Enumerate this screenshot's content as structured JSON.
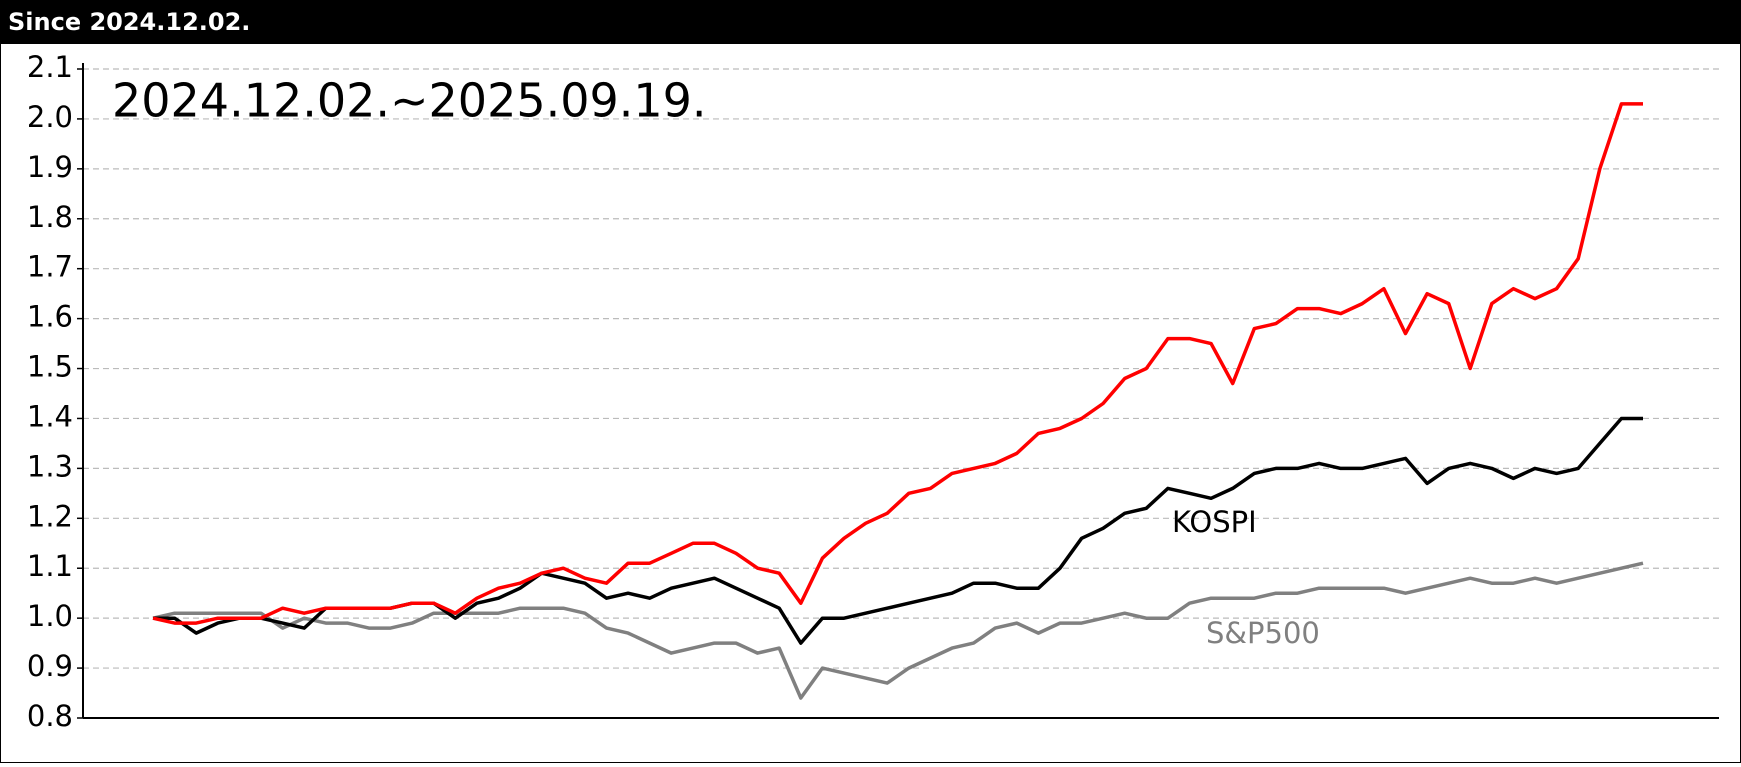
{
  "header": {
    "title": "Since  2024.12.02."
  },
  "chart_data": {
    "type": "line",
    "title": "2024.12.02.~2025.09.19.",
    "annotations": [
      "KOSPI",
      "S&P500"
    ],
    "series": [
      {
        "color": "#ff0000",
        "values": [
          1.0,
          0.99,
          0.99,
          1.0,
          1.0,
          1.0,
          1.02,
          1.01,
          1.02,
          1.02,
          1.02,
          1.02,
          1.03,
          1.03,
          1.01,
          1.04,
          1.06,
          1.07,
          1.09,
          1.1,
          1.08,
          1.07,
          1.11,
          1.11,
          1.13,
          1.15,
          1.15,
          1.13,
          1.1,
          1.09,
          1.03,
          1.12,
          1.16,
          1.19,
          1.21,
          1.25,
          1.26,
          1.29,
          1.3,
          1.31,
          1.33,
          1.37,
          1.38,
          1.4,
          1.43,
          1.48,
          1.5,
          1.56,
          1.56,
          1.55,
          1.47,
          1.58,
          1.59,
          1.62,
          1.62,
          1.61,
          1.63,
          1.66,
          1.57,
          1.65,
          1.63,
          1.5,
          1.63,
          1.66,
          1.64,
          1.66,
          1.72,
          1.9,
          2.03,
          2.03
        ]
      },
      {
        "name": "KOSPI",
        "color": "#000000",
        "values": [
          1.0,
          1.0,
          0.97,
          0.99,
          1.0,
          1.0,
          0.99,
          0.98,
          1.02,
          1.02,
          1.02,
          1.02,
          1.03,
          1.03,
          1.0,
          1.03,
          1.04,
          1.06,
          1.09,
          1.08,
          1.07,
          1.04,
          1.05,
          1.04,
          1.06,
          1.07,
          1.08,
          1.06,
          1.04,
          1.02,
          0.95,
          1.0,
          1.0,
          1.01,
          1.02,
          1.03,
          1.04,
          1.05,
          1.07,
          1.07,
          1.06,
          1.06,
          1.1,
          1.16,
          1.18,
          1.21,
          1.22,
          1.26,
          1.25,
          1.24,
          1.26,
          1.29,
          1.3,
          1.3,
          1.31,
          1.3,
          1.3,
          1.31,
          1.32,
          1.27,
          1.3,
          1.31,
          1.3,
          1.28,
          1.3,
          1.29,
          1.3,
          1.35,
          1.4,
          1.4
        ]
      },
      {
        "name": "S&P500",
        "color": "#808080",
        "values": [
          1.0,
          1.01,
          1.01,
          1.01,
          1.01,
          1.01,
          0.98,
          1.0,
          0.99,
          0.99,
          0.98,
          0.98,
          0.99,
          1.01,
          1.01,
          1.01,
          1.01,
          1.02,
          1.02,
          1.02,
          1.01,
          0.98,
          0.97,
          0.95,
          0.93,
          0.94,
          0.95,
          0.95,
          0.93,
          0.94,
          0.84,
          0.9,
          0.89,
          0.88,
          0.87,
          0.9,
          0.92,
          0.94,
          0.95,
          0.98,
          0.99,
          0.97,
          0.99,
          0.99,
          1.0,
          1.01,
          1.0,
          1.0,
          1.03,
          1.04,
          1.04,
          1.04,
          1.05,
          1.05,
          1.06,
          1.06,
          1.06,
          1.06,
          1.05,
          1.06,
          1.07,
          1.08,
          1.07,
          1.07,
          1.08,
          1.07,
          1.08,
          1.09,
          1.1,
          1.11
        ]
      }
    ],
    "ylim": [
      0.8,
      2.1
    ],
    "yticks": [
      0.8,
      0.9,
      {
        "value": 1,
        "label": "1.0"
      },
      1.1,
      1.2,
      1.3,
      1.4,
      1.5,
      1.6,
      1.7,
      1.8,
      1.9,
      {
        "value": 2,
        "label": "2.0"
      },
      2.1
    ],
    "grid": true
  }
}
